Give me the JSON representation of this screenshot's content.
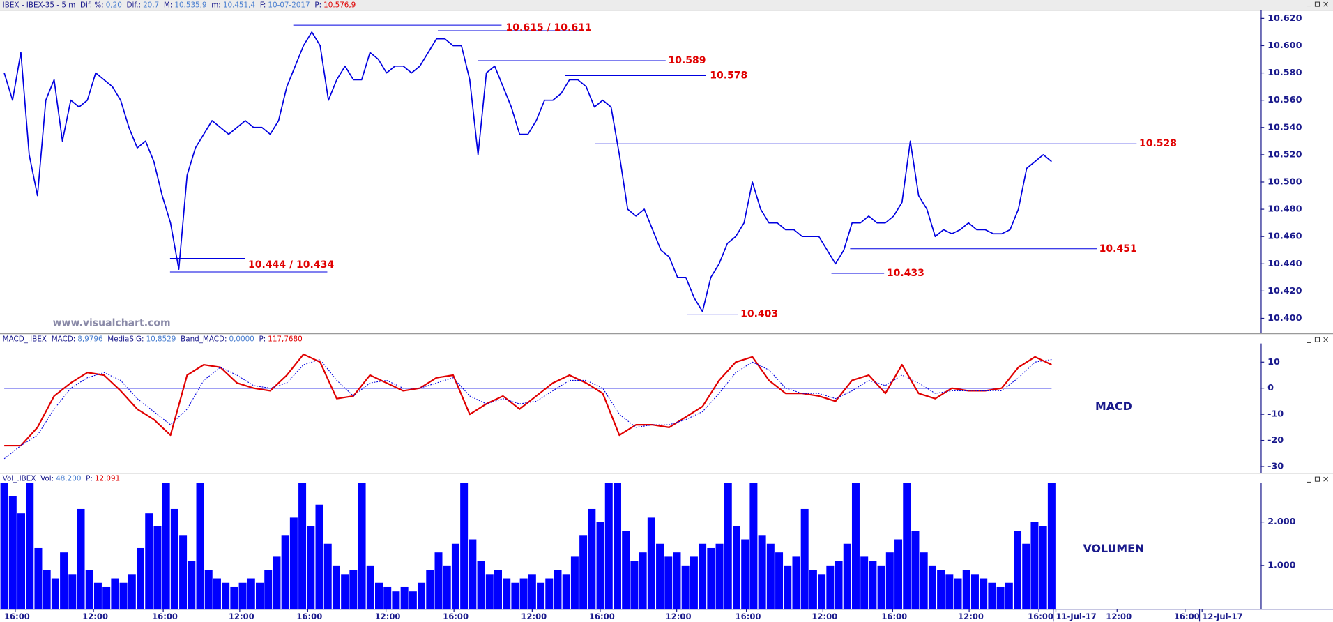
{
  "chart_data": [
    {
      "type": "line",
      "info": [
        {
          "label": "IBEX - IBEX-35 - 5 m"
        },
        {
          "label": "Dif. %:",
          "value": "0,20"
        },
        {
          "label": "Dif.:",
          "value": "20,7"
        },
        {
          "label": "M:",
          "value": "10.535,9"
        },
        {
          "label": "m:",
          "value": "10.451,4"
        },
        {
          "label": "F:",
          "value": "10-07-2017"
        },
        {
          "label": "P:",
          "value": "10.576,9",
          "color": "#e00000"
        }
      ],
      "watermark": "www.visualchart.com",
      "ylim": [
        10389,
        10626
      ],
      "yticks": [
        {
          "value": 10400,
          "label": "10.400"
        },
        {
          "value": 10420,
          "label": "10.420"
        },
        {
          "value": 10440,
          "label": "10.440"
        },
        {
          "value": 10460,
          "label": "10.460"
        },
        {
          "value": 10480,
          "label": "10.480"
        },
        {
          "value": 10500,
          "label": "10.500"
        },
        {
          "value": 10520,
          "label": "10.520"
        },
        {
          "value": 10540,
          "label": "10.540"
        },
        {
          "value": 10560,
          "label": "10.560"
        },
        {
          "value": 10580,
          "label": "10.580"
        },
        {
          "value": 10600,
          "label": "10.600"
        },
        {
          "value": 10620,
          "label": "10.620"
        }
      ],
      "series": [
        {
          "color": "#0000e0",
          "values": [
            10580,
            10560,
            10595,
            10520,
            10490,
            10560,
            10575,
            10530,
            10560,
            10555,
            10560,
            10580,
            10575,
            10570,
            10560,
            10540,
            10525,
            10530,
            10515,
            10490,
            10470,
            10436,
            10505,
            10525,
            10535,
            10545,
            10540,
            10535,
            10540,
            10545,
            10540,
            10540,
            10535,
            10545,
            10570,
            10585,
            10600,
            10610,
            10600,
            10560,
            10575,
            10585,
            10575,
            10575,
            10595,
            10590,
            10580,
            10585,
            10585,
            10580,
            10585,
            10595,
            10605,
            10605,
            10600,
            10600,
            10575,
            10520,
            10580,
            10585,
            10570,
            10555,
            10535,
            10535,
            10545,
            10560,
            10560,
            10565,
            10575,
            10575,
            10570,
            10555,
            10560,
            10555,
            10520,
            10480,
            10475,
            10480,
            10465,
            10450,
            10445,
            10430,
            10430,
            10415,
            10405,
            10430,
            10440,
            10455,
            10460,
            10470,
            10500,
            10480,
            10470,
            10470,
            10465,
            10465,
            10460,
            10460,
            10460,
            10450,
            10440,
            10450,
            10470,
            10470,
            10475,
            10470,
            10470,
            10475,
            10485,
            10530,
            10490,
            10480,
            10460,
            10465,
            10462,
            10465,
            10470,
            10465,
            10465,
            10462,
            10462,
            10465,
            10480,
            10510,
            10515,
            10520,
            10515
          ]
        }
      ],
      "annotation_color": "#0000e0",
      "annotations": [
        {
          "label": "10.615 / 10.611",
          "values": [
            10615,
            10611
          ]
        },
        {
          "label": "10.589",
          "values": [
            10589
          ]
        },
        {
          "label": "10.578",
          "values": [
            10578
          ]
        },
        {
          "label": "10.528",
          "values": [
            10528
          ]
        },
        {
          "label": "10.444 / 10.434",
          "values": [
            10444,
            10434
          ]
        },
        {
          "label": "10.433",
          "values": [
            10433
          ]
        },
        {
          "label": "10.451",
          "values": [
            10451
          ]
        },
        {
          "label": "10.403",
          "values": [
            10403
          ]
        }
      ]
    },
    {
      "type": "line",
      "title": "MACD",
      "info": [
        {
          "label": "MACD_.IBEX"
        },
        {
          "label": "MACD:",
          "value": "8,9796"
        },
        {
          "label": "MediaSIG:",
          "value": "10,8529"
        },
        {
          "label": "Band_MACD:",
          "value": "0,0000"
        },
        {
          "label": "P:",
          "value": "117,7680",
          "color": "#e00000"
        }
      ],
      "band_line": 0,
      "ylim": [
        -32.4,
        20.7
      ],
      "yticks": [
        -30,
        -20,
        -10,
        0,
        10
      ],
      "series": [
        {
          "color": "#e00000",
          "style": "solid",
          "values": [
            -22,
            -22,
            -15,
            -3,
            2,
            6,
            5,
            -1,
            -8,
            -12,
            -18,
            5,
            9,
            8,
            2,
            0,
            -1,
            5,
            13,
            10,
            -4,
            -3,
            5,
            2,
            -1,
            0,
            4,
            5,
            -10,
            -6,
            -3,
            -8,
            -3,
            2,
            5,
            2,
            -2,
            -18,
            -14,
            -14,
            -15,
            -11,
            -7,
            3,
            10,
            12,
            3,
            -2,
            -2,
            -3,
            -5,
            3,
            5,
            -2,
            9,
            -2,
            -4,
            0,
            -1,
            -1,
            0,
            8,
            12,
            9
          ]
        },
        {
          "color": "#0000e0",
          "style": "dotted",
          "values": [
            -27,
            -22,
            -18,
            -8,
            0,
            4,
            6,
            3,
            -4,
            -9,
            -14,
            -8,
            3,
            8,
            5,
            1,
            0,
            2,
            9,
            11,
            3,
            -3,
            2,
            3,
            0,
            0,
            2,
            4,
            -3,
            -6,
            -4,
            -6,
            -5,
            -1,
            3,
            3,
            0,
            -10,
            -15,
            -14,
            -14,
            -12,
            -9,
            -2,
            6,
            10,
            7,
            0,
            -2,
            -2,
            -4,
            -1,
            3,
            1,
            5,
            2,
            -2,
            -1,
            -1,
            -1,
            -1,
            4,
            10,
            11
          ]
        }
      ]
    },
    {
      "type": "bar",
      "title": "VOLUMEN",
      "info": [
        {
          "label": "Vol_.IBEX"
        },
        {
          "label": "Vol:",
          "value": "48.200"
        },
        {
          "label": "P:",
          "value": "12.091",
          "color": "#e00000"
        }
      ],
      "color": "#0000ff",
      "ylim": [
        0,
        2900
      ],
      "yticks": [
        {
          "value": 1000,
          "label": "1.000"
        },
        {
          "value": 2000,
          "label": "2.000"
        }
      ],
      "values": [
        2900,
        2600,
        2200,
        2900,
        1400,
        900,
        700,
        1300,
        800,
        2300,
        900,
        600,
        500,
        700,
        600,
        800,
        1400,
        2200,
        1900,
        2900,
        2300,
        1700,
        1100,
        2900,
        900,
        700,
        600,
        500,
        600,
        700,
        600,
        900,
        1200,
        1700,
        2100,
        2900,
        1900,
        2400,
        1500,
        1000,
        800,
        900,
        2900,
        1000,
        600,
        500,
        400,
        500,
        400,
        600,
        900,
        1300,
        1000,
        1500,
        2900,
        1600,
        1100,
        800,
        900,
        700,
        600,
        700,
        800,
        600,
        700,
        900,
        800,
        1200,
        1700,
        2300,
        2000,
        2900,
        2900,
        1800,
        1100,
        1300,
        2100,
        1500,
        1200,
        1300,
        1000,
        1200,
        1500,
        1400,
        1500,
        2900,
        1900,
        1600,
        2900,
        1700,
        1500,
        1300,
        1000,
        1200,
        2300,
        900,
        800,
        1000,
        1100,
        1500,
        2900,
        1200,
        1100,
        1000,
        1300,
        1600,
        2900,
        1800,
        1300,
        1000,
        900,
        800,
        700,
        900,
        800,
        700,
        600,
        500,
        600,
        1800,
        1500,
        2000,
        1900,
        2900
      ],
      "time_labels": [
        "16:00",
        "12:00",
        "16:00",
        "12:00",
        "16:00",
        "12:00",
        "16:00",
        "12:00",
        "16:00",
        "12:00",
        "16:00",
        "12:00",
        "16:00",
        "12:00",
        "16:00",
        "11-Jul-17",
        "12:00",
        "16:00",
        "12-Jul-17"
      ]
    }
  ]
}
